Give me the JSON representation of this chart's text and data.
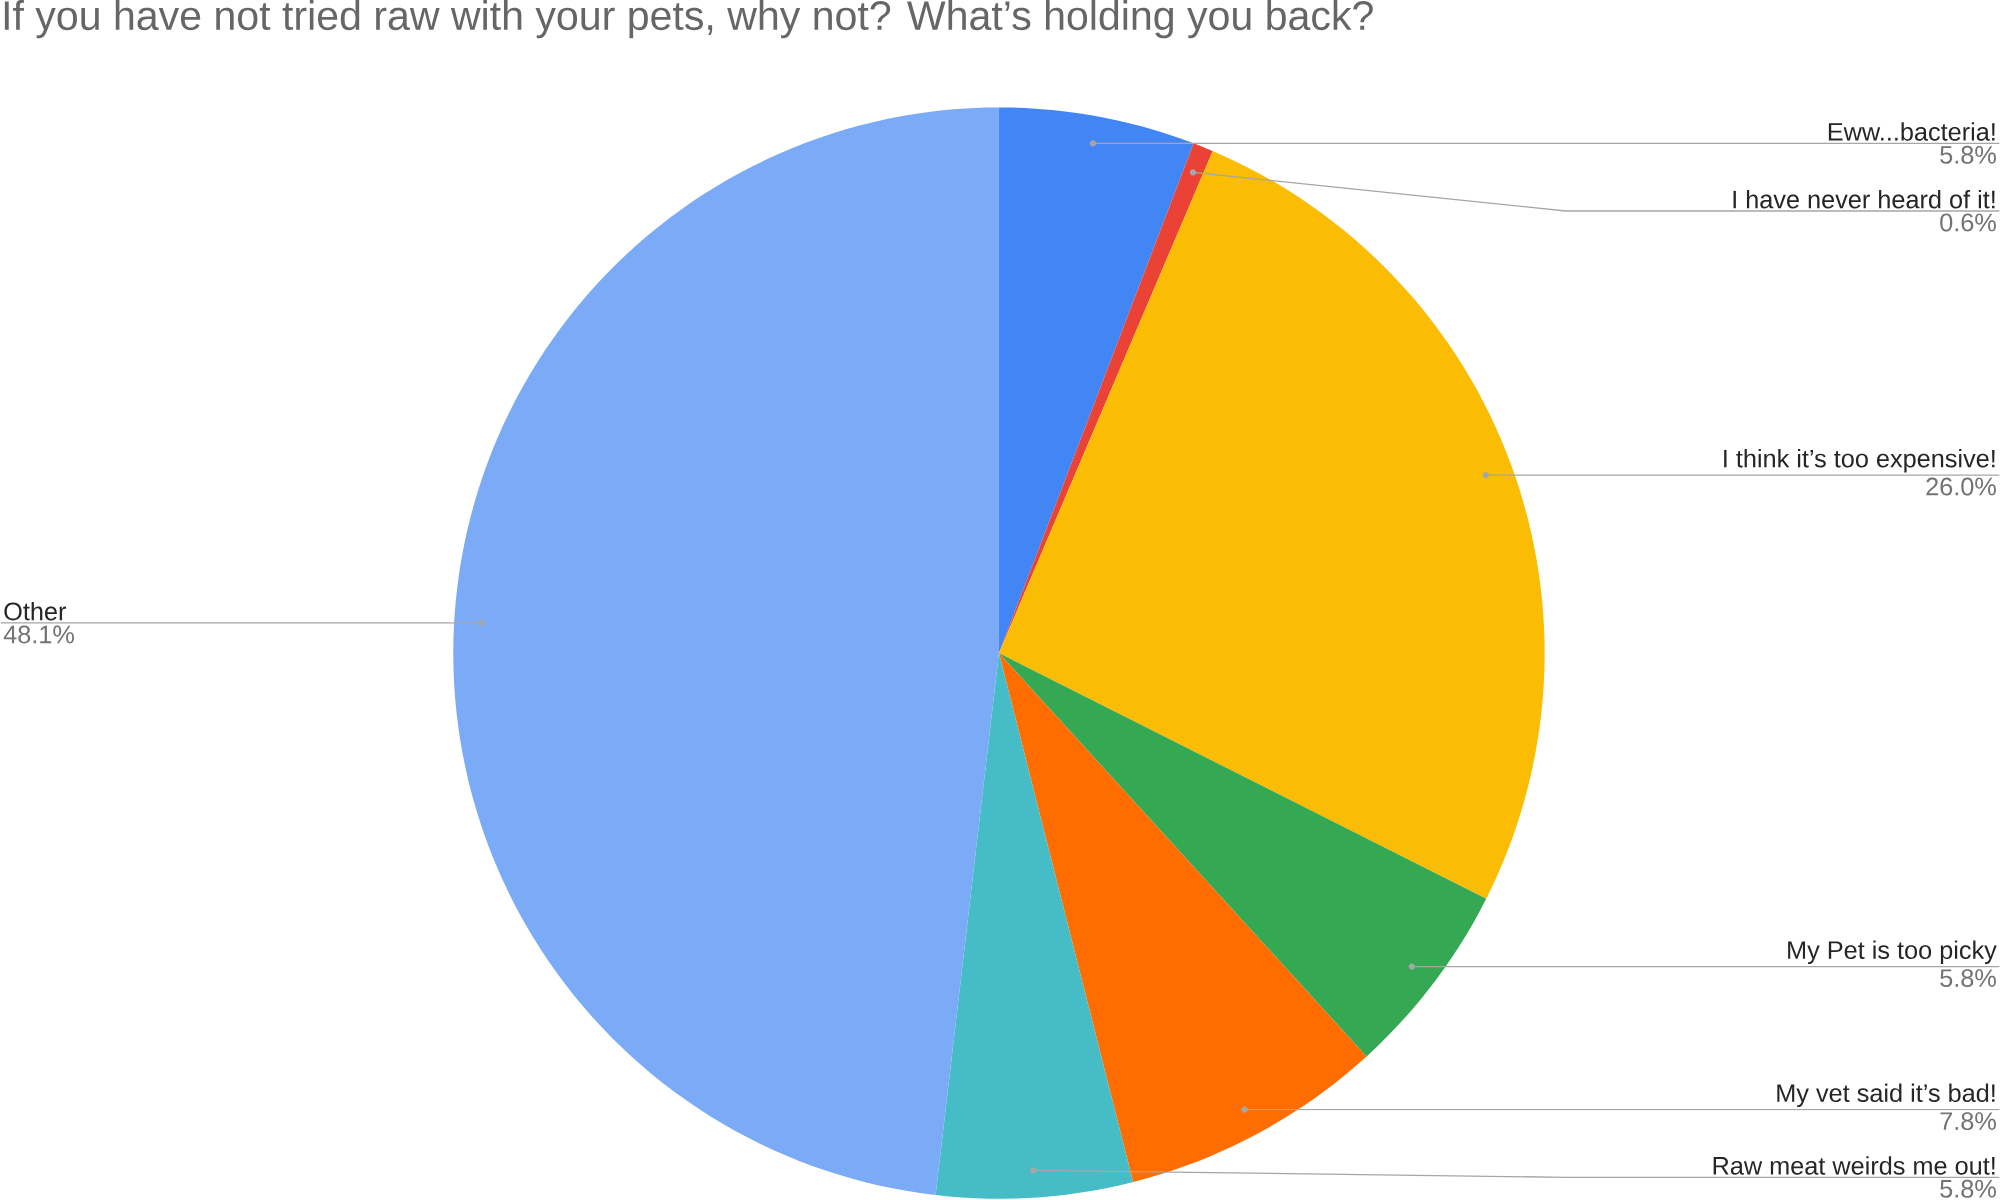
{
  "chart_data": {
    "type": "pie",
    "title": "If you have not tried raw with your pets, why not? What’s holding you back?",
    "categories": [
      "Eww...bacteria!",
      "I have never heard of it!",
      "I think it’s too expensive!",
      "My Pet is too picky",
      "My vet said it’s bad!",
      "Raw meat weirds me out!",
      "Other"
    ],
    "values": [
      5.8,
      0.6,
      26.0,
      5.8,
      7.8,
      5.8,
      48.1
    ],
    "colors": [
      "#4285f4",
      "#ea4335",
      "#fbbc04",
      "#34a853",
      "#ff6d01",
      "#46bdc6",
      "#7baaf7"
    ],
    "value_labels": [
      "5.8%",
      "0.6%",
      "26.0%",
      "5.8%",
      "7.8%",
      "5.8%",
      "48.1%"
    ]
  }
}
